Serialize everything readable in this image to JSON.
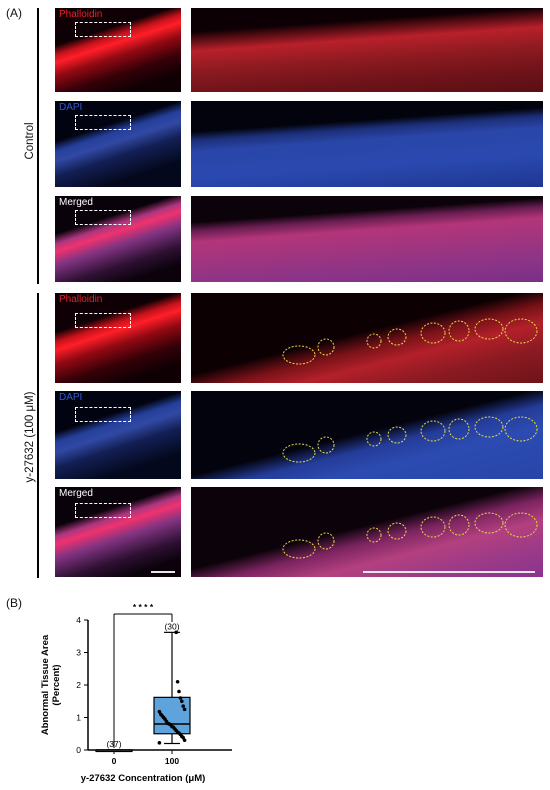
{
  "panel_a": {
    "label": "(A)",
    "groups": [
      {
        "label": "Control",
        "rows": [
          {
            "channel": "Phalloidin",
            "color": "#e8202a"
          },
          {
            "channel": "DAPI",
            "color": "#2e58d8"
          },
          {
            "channel": "Merged",
            "color": "#ffffff"
          }
        ]
      },
      {
        "label": "y-27632 (100 μM)",
        "rows": [
          {
            "channel": "Phalloidin",
            "color": "#e8202a"
          },
          {
            "channel": "DAPI",
            "color": "#2e58d8"
          },
          {
            "channel": "Merged",
            "color": "#ffffff"
          }
        ]
      }
    ],
    "roi_color": "#ffffff",
    "abnormal_outline_color": "#e6d84a"
  },
  "panel_b": {
    "label": "(B)",
    "significance": "* * * *",
    "chart_data": {
      "type": "box",
      "xlabel": "y-27632 Concentration (μM)",
      "ylabel": "Abnormal Tissue Area (Percent)",
      "ylim": [
        0,
        4
      ],
      "yticks": [
        "0",
        "1",
        "2",
        "3",
        "4"
      ],
      "categories": [
        "0",
        "100"
      ],
      "n_labels": [
        "(37)",
        "(30)"
      ],
      "groups": [
        {
          "category": "0",
          "min": 0,
          "q1": 0,
          "median": 0,
          "q3": 0,
          "max": 0,
          "color": "#ffffff",
          "points": []
        },
        {
          "category": "100",
          "min": 0.2,
          "q1": 0.5,
          "median": 0.8,
          "q3": 1.62,
          "max": 3.62,
          "color": "#5ea3dc",
          "points": [
            0.22,
            0.3,
            0.38,
            0.42,
            0.48,
            0.52,
            0.55,
            0.6,
            0.65,
            0.7,
            0.72,
            0.78,
            0.8,
            0.82,
            0.88,
            0.95,
            1.0,
            1.05,
            1.1,
            1.18,
            1.25,
            1.35,
            1.5,
            1.6,
            1.8,
            2.1,
            3.62
          ]
        }
      ]
    }
  }
}
